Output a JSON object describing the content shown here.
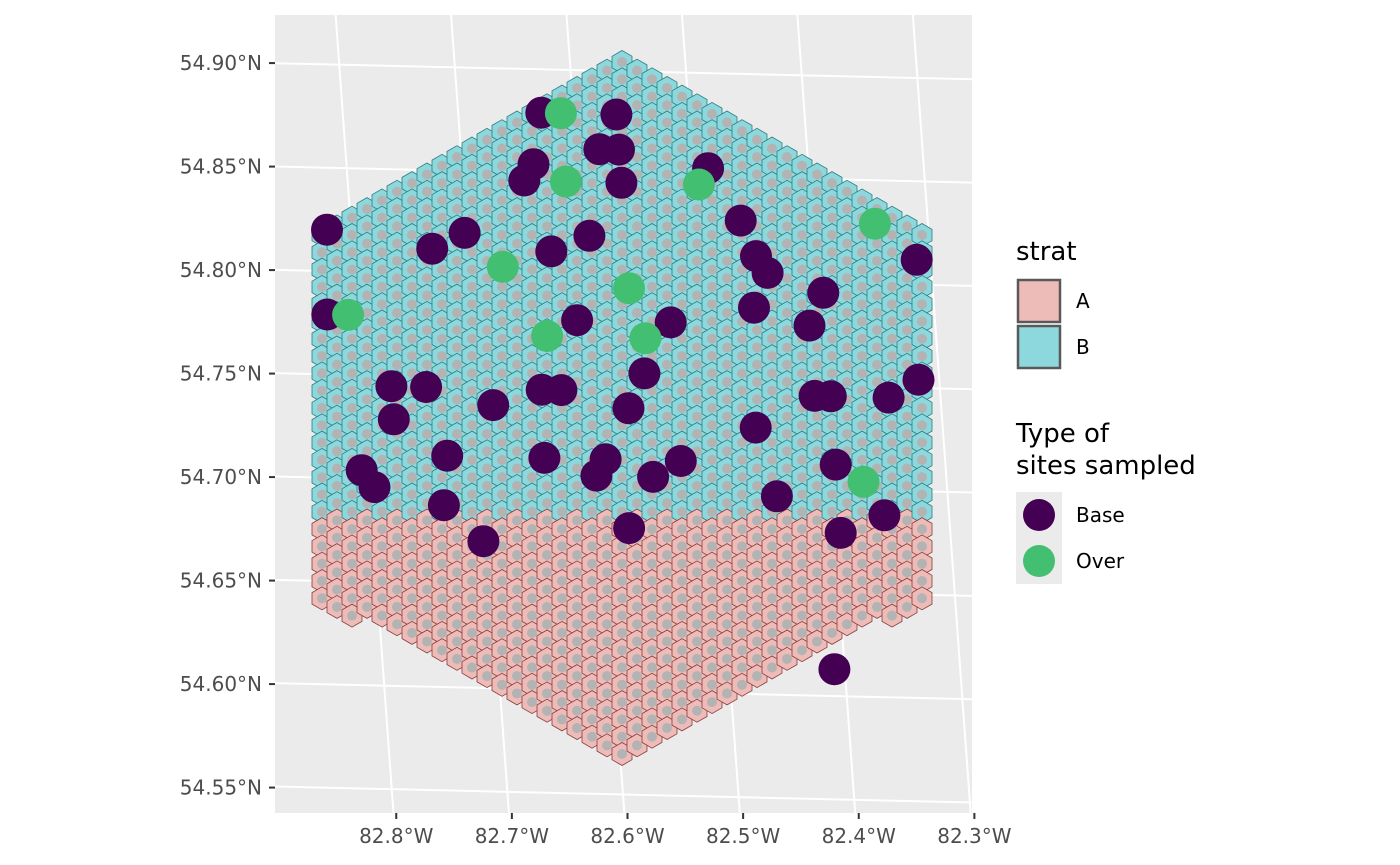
{
  "chart_data": {
    "type": "scatter",
    "title": "",
    "xlabel": "",
    "ylabel": "",
    "x_ticks": [
      {
        "value": -82.8,
        "label": "82.8°W"
      },
      {
        "value": -82.7,
        "label": "82.7°W"
      },
      {
        "value": -82.6,
        "label": "82.6°W"
      },
      {
        "value": -82.5,
        "label": "82.5°W"
      },
      {
        "value": -82.4,
        "label": "82.4°W"
      },
      {
        "value": -82.3,
        "label": "82.3°W"
      }
    ],
    "y_ticks": [
      {
        "value": 54.55,
        "label": "54.55°N"
      },
      {
        "value": 54.6,
        "label": "54.60°N"
      },
      {
        "value": 54.65,
        "label": "54.65°N"
      },
      {
        "value": 54.7,
        "label": "54.70°N"
      },
      {
        "value": 54.75,
        "label": "54.75°N"
      },
      {
        "value": 54.8,
        "label": "54.80°N"
      },
      {
        "value": 54.85,
        "label": "54.85°N"
      },
      {
        "value": 54.9,
        "label": "54.90°N"
      }
    ],
    "grid": true,
    "background": "#ebebeb",
    "hexgrid": {
      "description_level": "hexagonal sampling frame split into strata",
      "strata": [
        {
          "name": "A",
          "fill": "#eebcb8",
          "stroke": "#8b3a3a"
        },
        {
          "name": "B",
          "fill": "#8cd8dc",
          "stroke": "#2b7c80"
        }
      ]
    },
    "legends": [
      {
        "title": "strat",
        "items": [
          {
            "label": "A",
            "color": "#eebcb8",
            "kind": "fill"
          },
          {
            "label": "B",
            "color": "#8cd8dc",
            "kind": "fill"
          }
        ]
      },
      {
        "title": "Type of\nsites sampled",
        "items": [
          {
            "label": "Base",
            "color": "#440154",
            "kind": "point"
          },
          {
            "label": "Over",
            "color": "#43bf71",
            "kind": "point"
          }
        ]
      }
    ],
    "series": [
      {
        "name": "Base",
        "color": "#440154",
        "points": [
          [
            -82.628,
            54.879
          ],
          [
            -82.563,
            54.879
          ],
          [
            -82.58,
            54.862
          ],
          [
            -82.563,
            54.862
          ],
          [
            -82.638,
            54.854
          ],
          [
            -82.487,
            54.854
          ],
          [
            -82.647,
            54.846
          ],
          [
            -82.563,
            54.846
          ],
          [
            -82.462,
            54.829
          ],
          [
            -82.821,
            54.82
          ],
          [
            -82.702,
            54.82
          ],
          [
            -82.594,
            54.82
          ],
          [
            -82.731,
            54.812
          ],
          [
            -82.628,
            54.812
          ],
          [
            -82.451,
            54.812
          ],
          [
            -82.312,
            54.812
          ],
          [
            -82.442,
            54.804
          ],
          [
            -82.395,
            54.795
          ],
          [
            -82.456,
            54.787
          ],
          [
            -82.826,
            54.779
          ],
          [
            -82.61,
            54.779
          ],
          [
            -82.529,
            54.779
          ],
          [
            -82.409,
            54.779
          ],
          [
            -82.775,
            54.745
          ],
          [
            -82.745,
            54.745
          ],
          [
            -82.645,
            54.745
          ],
          [
            -82.628,
            54.745
          ],
          [
            -82.409,
            54.745
          ],
          [
            -82.395,
            54.745
          ],
          [
            -82.345,
            54.745
          ],
          [
            -82.555,
            54.754
          ],
          [
            -82.318,
            54.754
          ],
          [
            -82.688,
            54.737
          ],
          [
            -82.571,
            54.737
          ],
          [
            -82.775,
            54.729
          ],
          [
            -82.462,
            54.729
          ],
          [
            -82.731,
            54.712
          ],
          [
            -82.647,
            54.712
          ],
          [
            -82.594,
            54.712
          ],
          [
            -82.529,
            54.712
          ],
          [
            -82.395,
            54.712
          ],
          [
            -82.806,
            54.704
          ],
          [
            -82.603,
            54.704
          ],
          [
            -82.554,
            54.704
          ],
          [
            -82.796,
            54.696
          ],
          [
            -82.448,
            54.696
          ],
          [
            -82.737,
            54.688
          ],
          [
            -82.356,
            54.688
          ],
          [
            -82.578,
            54.679
          ],
          [
            -82.395,
            54.679
          ],
          [
            -82.705,
            54.671
          ],
          [
            -82.409,
            54.613
          ]
        ]
      },
      {
        "name": "Over",
        "color": "#43bf71",
        "points": [
          [
            -82.611,
            54.879
          ],
          [
            -82.611,
            54.846
          ],
          [
            -82.496,
            54.846
          ],
          [
            -82.346,
            54.829
          ],
          [
            -82.671,
            54.804
          ],
          [
            -82.563,
            54.795
          ],
          [
            -82.808,
            54.779
          ],
          [
            -82.637,
            54.771
          ],
          [
            -82.552,
            54.771
          ],
          [
            -82.372,
            54.704
          ]
        ]
      }
    ]
  }
}
